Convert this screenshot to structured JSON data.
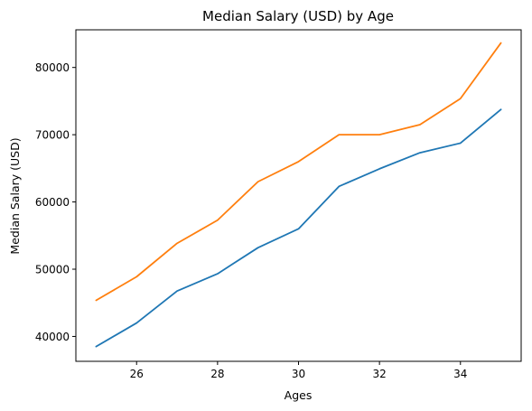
{
  "chart_data": {
    "type": "line",
    "title": "Median Salary (USD) by Age",
    "xlabel": "Ages",
    "ylabel": "Median Salary (USD)",
    "x": [
      25,
      26,
      27,
      28,
      29,
      30,
      31,
      32,
      33,
      34,
      35
    ],
    "xlim": [
      24.5,
      35.5
    ],
    "ylim": [
      36300,
      85600
    ],
    "xticks": [
      26,
      28,
      30,
      32,
      34
    ],
    "yticks": [
      40000,
      50000,
      60000,
      70000,
      80000
    ],
    "grid": false,
    "series": [
      {
        "color": "#1f77b4",
        "values": [
          38496,
          42000,
          46752,
          49320,
          53200,
          56000,
          62316,
          64928,
          67317,
          68748,
          73752
        ]
      },
      {
        "color": "#ff7f0e",
        "values": [
          45372,
          48876,
          53850,
          57287,
          63016,
          65998,
          70003,
          70000,
          71496,
          75370,
          83640
        ]
      }
    ]
  }
}
